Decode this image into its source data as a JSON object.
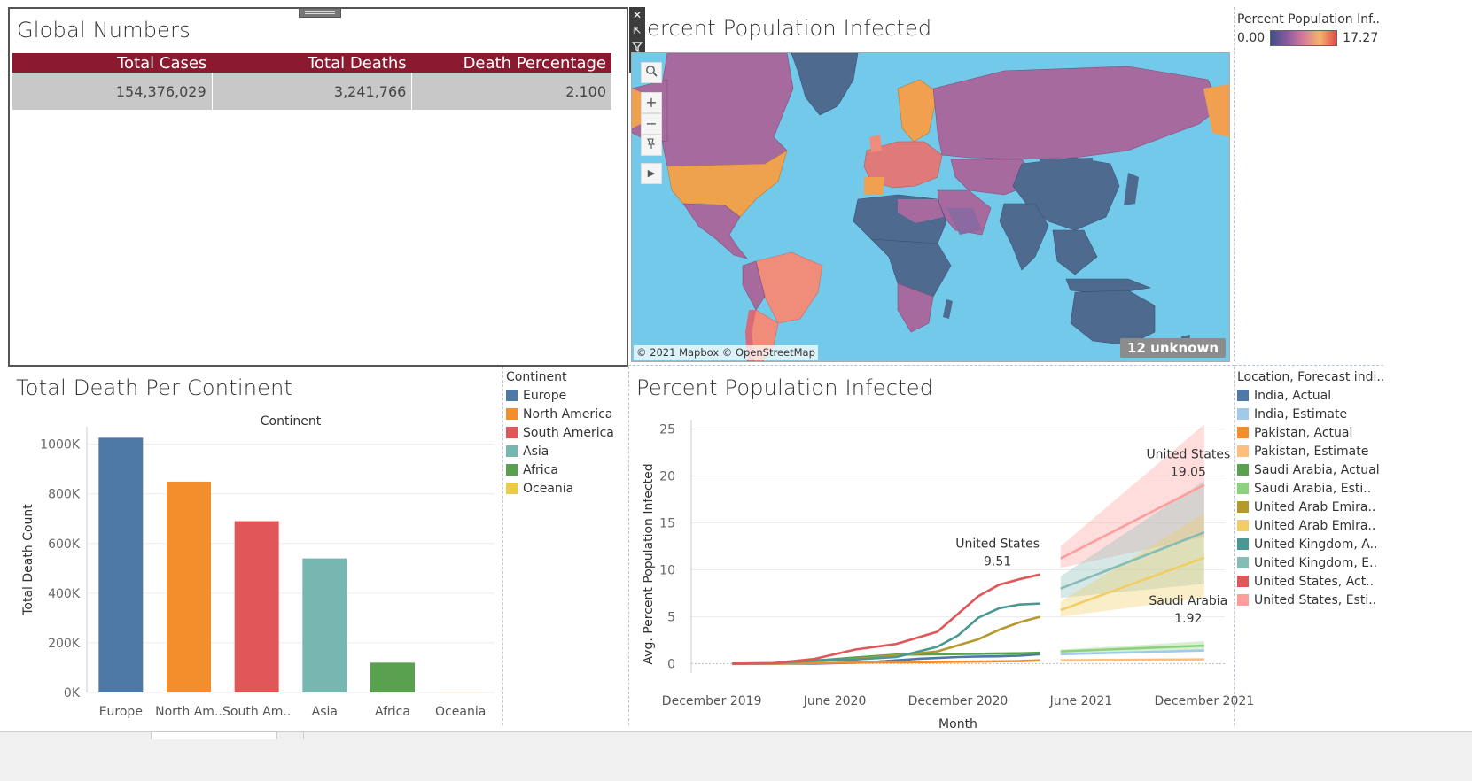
{
  "global_numbers": {
    "title": "Global Numbers",
    "columns": [
      "Total Cases",
      "Total Deaths",
      "Death Percentage"
    ],
    "row": [
      "154,376,029",
      "3,241,766",
      "2.100"
    ]
  },
  "map": {
    "title": "Percent Population Infected",
    "title_visible": "ercent Population Infected",
    "attribution": "© 2021 Mapbox © OpenStreetMap",
    "unknown_badge": "12 unknown",
    "legend": {
      "title": "Percent Population Inf..",
      "min": "0.00",
      "max": "17.27"
    },
    "tools": {
      "search": "search-icon",
      "zoom_in": "+",
      "zoom_out": "−",
      "pin": "pin-icon",
      "expand": "▶"
    }
  },
  "floating_toolbar": {
    "close": "✕",
    "popout": "⇱",
    "filter": "filter-icon",
    "more": "▾"
  },
  "continent_chart": {
    "title": "Total Death Per Continent",
    "legend_title": "Continent",
    "chart_data": {
      "type": "bar",
      "title": "Continent",
      "ylabel": "Total Death Count",
      "ylim": [
        0,
        1070000
      ],
      "yticks": [
        0,
        200000,
        400000,
        600000,
        800000,
        1000000
      ],
      "ytick_labels": [
        "0K",
        "200K",
        "400K",
        "600K",
        "800K",
        "1000K"
      ],
      "categories": [
        "Europe",
        "North Am..",
        "South Am..",
        "Asia",
        "Africa",
        "Oceania"
      ],
      "legend": [
        "Europe",
        "North America",
        "South America",
        "Asia",
        "Africa",
        "Oceania"
      ],
      "values": [
        1026000,
        849000,
        690000,
        540000,
        120000,
        1000
      ],
      "colors": [
        "#4e79a7",
        "#f28e2b",
        "#e15759",
        "#76b7b2",
        "#59a14f",
        "#edc948"
      ]
    }
  },
  "infection_chart": {
    "title": "Percent Population Infected",
    "legend_title": "Location, Forecast indi..",
    "chart_data": {
      "type": "line",
      "xlabel": "Month",
      "ylabel": "Avg. Percent Population Infected",
      "x_tick_labels": [
        "December 2019",
        "June 2020",
        "December 2020",
        "June 2021",
        "December 2021"
      ],
      "x_ticks": [
        "2019-12",
        "2020-06",
        "2020-12",
        "2021-06",
        "2021-12"
      ],
      "yticks": [
        0,
        5,
        10,
        15,
        20,
        25
      ],
      "ylim": [
        -1,
        26
      ],
      "series": [
        {
          "name": "India, Actual",
          "color": "#4e79a7",
          "x": [
            "2020-01",
            "2020-02",
            "2020-03",
            "2020-04",
            "2020-05",
            "2020-06",
            "2020-07",
            "2020-08",
            "2020-09",
            "2020-10",
            "2020-11",
            "2020-12",
            "2021-01",
            "2021-02",
            "2021-03",
            "2021-04"
          ],
          "values": [
            0,
            0,
            0,
            0,
            0,
            0.05,
            0.1,
            0.2,
            0.35,
            0.5,
            0.6,
            0.7,
            0.75,
            0.78,
            0.85,
            1.0
          ]
        },
        {
          "name": "India, Estimate",
          "color": "#a0cbe8",
          "x": [
            "2021-05",
            "2021-12"
          ],
          "values": [
            1.0,
            1.4
          ]
        },
        {
          "name": "Pakistan, Actual",
          "color": "#f28e2b",
          "x": [
            "2020-01",
            "2020-03",
            "2020-05",
            "2020-07",
            "2020-09",
            "2020-11",
            "2021-01",
            "2021-03",
            "2021-04"
          ],
          "values": [
            0,
            0,
            0.05,
            0.12,
            0.14,
            0.17,
            0.22,
            0.27,
            0.35
          ]
        },
        {
          "name": "Pakistan, Estimate",
          "color": "#ffbe7d",
          "x": [
            "2021-05",
            "2021-12"
          ],
          "values": [
            0.35,
            0.45
          ]
        },
        {
          "name": "Saudi Arabia, Actual",
          "color": "#59a14f",
          "x": [
            "2020-01",
            "2020-03",
            "2020-05",
            "2020-07",
            "2020-09",
            "2020-11",
            "2021-01",
            "2021-03",
            "2021-04"
          ],
          "values": [
            0,
            0.02,
            0.3,
            0.65,
            0.95,
            1.0,
            1.05,
            1.1,
            1.15
          ]
        },
        {
          "name": "Saudi Arabia, Esti..",
          "color": "#8cd17d",
          "x": [
            "2021-05",
            "2021-12"
          ],
          "values": [
            1.3,
            1.92
          ]
        },
        {
          "name": "United Arab Emira..",
          "color": "#b6992d",
          "x": [
            "2020-01",
            "2020-03",
            "2020-05",
            "2020-07",
            "2020-09",
            "2020-11",
            "2021-01",
            "2021-02",
            "2021-03",
            "2021-04"
          ],
          "values": [
            0,
            0.02,
            0.25,
            0.5,
            0.85,
            1.3,
            2.6,
            3.6,
            4.4,
            5.0
          ]
        },
        {
          "name": "United Arab Emira..",
          "color": "#f1ce63",
          "x": [
            "2021-05",
            "2021-12"
          ],
          "values": [
            5.7,
            11.3
          ]
        },
        {
          "name": "United Kingdom, A..",
          "color": "#499894",
          "x": [
            "2020-01",
            "2020-03",
            "2020-05",
            "2020-07",
            "2020-09",
            "2020-11",
            "2020-12",
            "2021-01",
            "2021-02",
            "2021-03",
            "2021-04"
          ],
          "values": [
            0,
            0.05,
            0.35,
            0.45,
            0.7,
            1.8,
            3.0,
            4.9,
            5.9,
            6.3,
            6.4
          ]
        },
        {
          "name": "United Kingdom, E..",
          "color": "#86bcb6",
          "x": [
            "2021-05",
            "2021-12"
          ],
          "values": [
            8.0,
            14.0
          ]
        },
        {
          "name": "United States, Act..",
          "color": "#e15759",
          "x": [
            "2020-01",
            "2020-03",
            "2020-05",
            "2020-07",
            "2020-09",
            "2020-11",
            "2020-12",
            "2021-01",
            "2021-02",
            "2021-03",
            "2021-04"
          ],
          "values": [
            0,
            0.05,
            0.5,
            1.5,
            2.1,
            3.4,
            5.3,
            7.2,
            8.4,
            9.0,
            9.51
          ]
        },
        {
          "name": "United States, Esti..",
          "color": "#ff9d9a",
          "x": [
            "2021-05",
            "2021-12"
          ],
          "values": [
            11.2,
            19.05
          ]
        }
      ],
      "bands": [
        {
          "series": "United States, Esti..",
          "x": [
            "2021-05",
            "2021-12"
          ],
          "lower": [
            10.2,
            13.5
          ],
          "upper": [
            12.5,
            25.5
          ],
          "color": "#ff9d9a"
        },
        {
          "series": "United Kingdom, E..",
          "x": [
            "2021-05",
            "2021-12"
          ],
          "lower": [
            7.0,
            8.5
          ],
          "upper": [
            9.3,
            19.5
          ],
          "color": "#86bcb6"
        },
        {
          "series": "United Arab Emira..",
          "x": [
            "2021-05",
            "2021-12"
          ],
          "lower": [
            5.0,
            7.0
          ],
          "upper": [
            6.6,
            16.0
          ],
          "color": "#f1ce63"
        },
        {
          "series": "Saudi Arabia, Esti..",
          "x": [
            "2021-05",
            "2021-12"
          ],
          "lower": [
            1.1,
            1.5
          ],
          "upper": [
            1.5,
            2.4
          ],
          "color": "#8cd17d"
        }
      ],
      "annotations": [
        {
          "label": "United States",
          "value": "9.51"
        },
        {
          "label": "United States",
          "value": "19.05"
        },
        {
          "label": "Saudi Arabia",
          "value": "1.92"
        }
      ]
    }
  }
}
